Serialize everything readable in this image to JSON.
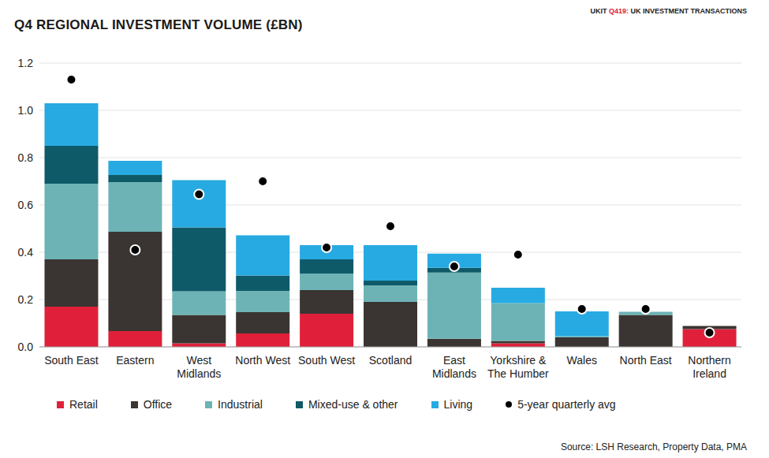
{
  "chart_data": {
    "type": "bar",
    "title": "Q4 REGIONAL INVESTMENT VOLUME (£BN)",
    "subtitle": "UKIT Q419: UK INVESTMENT TRANSACTIONS",
    "annotations": [
      "Source: LSH Research, Property Data, PMA"
    ],
    "stacked": true,
    "grid": true,
    "legend": "bottom",
    "categories": [
      "South East",
      "Eastern",
      "West Midlands",
      "North West",
      "South West",
      "Scotland",
      "East Midlands",
      "Yorkshire & The Humber",
      "Wales",
      "North East",
      "Northern Ireland"
    ],
    "ylim": [
      0,
      1.2
    ],
    "yticks": [
      {
        "value": 0,
        "label": "0.0"
      },
      0.2,
      0.4,
      0.6,
      0.8,
      {
        "value": 1,
        "label": "1.0"
      },
      1.2
    ],
    "series": [
      {
        "name": "Retail",
        "color": "#e0203a",
        "values": [
          0.17,
          0.067,
          0.015,
          0.057,
          0.14,
          0,
          0,
          0.015,
          0,
          0,
          0.075
        ]
      },
      {
        "name": "Office",
        "color": "#3a3532",
        "values": [
          0.2,
          0.42,
          0.12,
          0.09,
          0.1,
          0.19,
          0.034,
          0.01,
          0.04,
          0.135,
          0.013
        ]
      },
      {
        "name": "Industrial",
        "color": "#6db3b5",
        "values": [
          0.32,
          0.21,
          0.1,
          0.09,
          0.07,
          0.07,
          0.28,
          0.16,
          0.005,
          0.013,
          0
        ]
      },
      {
        "name": "Mixed-use & other",
        "color": "#0f5a68",
        "values": [
          0.16,
          0.03,
          0.27,
          0.065,
          0.06,
          0.02,
          0.02,
          0,
          0,
          0,
          0
        ]
      },
      {
        "name": "Living",
        "color": "#27aae1",
        "values": [
          0.18,
          0.06,
          0.2,
          0.17,
          0.06,
          0.15,
          0.06,
          0.065,
          0.105,
          0,
          0
        ]
      },
      {
        "name": "5-year quarterly avg",
        "type": "scatter",
        "marker": "circle",
        "color": "#000000",
        "values": [
          1.13,
          0.41,
          0.645,
          0.7,
          0.42,
          0.51,
          0.34,
          0.39,
          0.16,
          0.16,
          0.06
        ]
      }
    ]
  }
}
